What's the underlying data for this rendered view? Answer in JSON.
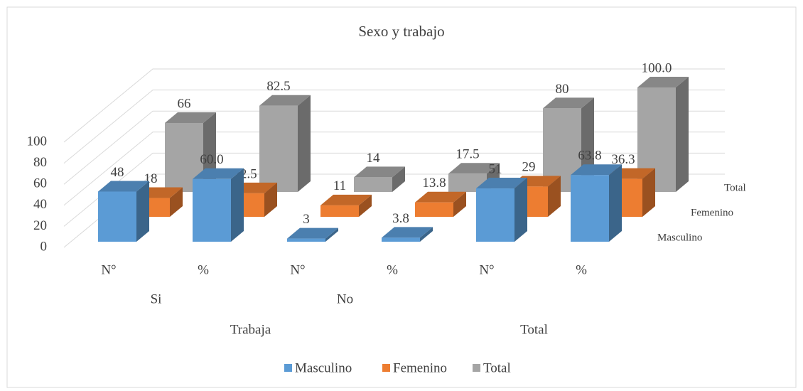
{
  "chart_data": {
    "type": "bar3d",
    "title": "Sexo y trabajo",
    "categories": [
      "N°",
      "%",
      "N°",
      "%",
      "N°",
      "%"
    ],
    "category_levels": [
      [
        "Si",
        "Si",
        "No",
        "No",
        null,
        null
      ],
      [
        "Trabaja",
        "Trabaja",
        "Trabaja",
        "Trabaja",
        "Total",
        "Total"
      ]
    ],
    "series": [
      {
        "name": "Masculino",
        "color": "#5b9bd5",
        "values": [
          48,
          60.0,
          3,
          3.8,
          51,
          63.8
        ],
        "value_labels": [
          "48",
          "60.0",
          "3",
          "3.8",
          "51",
          "63.8"
        ]
      },
      {
        "name": "Femenino",
        "color": "#ed7d31",
        "values": [
          18,
          22.5,
          11,
          13.8,
          29,
          36.3
        ],
        "value_labels": [
          "18",
          "22.5",
          "11",
          "13.8",
          "29",
          "36.3"
        ]
      },
      {
        "name": "Total",
        "color": "#a5a5a5",
        "values": [
          66,
          82.5,
          14,
          17.5,
          80,
          100.0
        ],
        "value_labels": [
          "66",
          "82.5",
          "14",
          "17.5",
          "80",
          "100.0"
        ]
      }
    ],
    "ylim": [
      0,
      100
    ],
    "yticks": [
      0,
      20,
      40,
      60,
      80,
      100
    ],
    "grid": true,
    "legend": "bottom"
  }
}
